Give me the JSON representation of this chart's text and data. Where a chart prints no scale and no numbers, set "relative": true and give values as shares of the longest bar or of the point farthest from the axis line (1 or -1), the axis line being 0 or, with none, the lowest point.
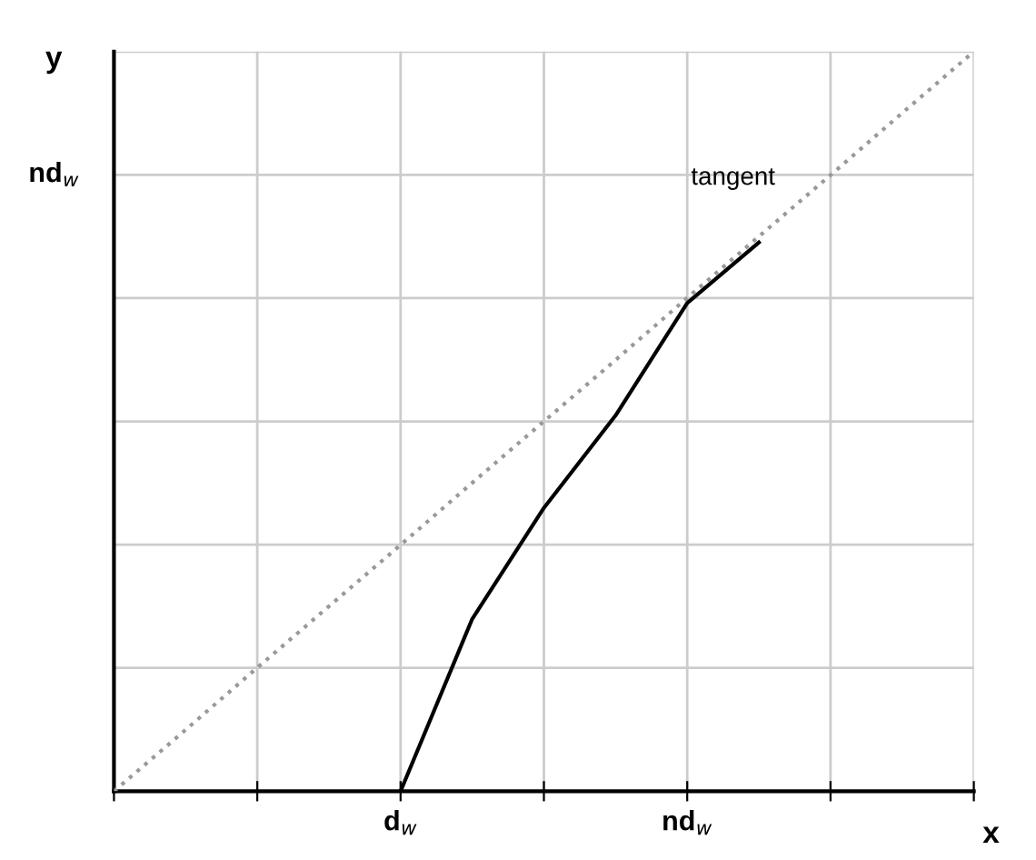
{
  "chart_data": {
    "type": "line",
    "xlabel": "x",
    "ylabel": "y",
    "relative": true,
    "categories": [
      null,
      null,
      null,
      null,
      "d$_{w}$",
      null,
      null,
      null,
      "nd$_{w}$",
      null,
      null,
      null,
      null
    ],
    "grid": true,
    "series": [
      {
        "color": "#999999",
        "line_style": "dotted",
        "values": [
          0,
          0.083,
          0.167,
          0.25,
          0.333,
          0.417,
          0.5,
          0.583,
          0.667,
          0.75,
          0.833,
          0.917,
          1
        ]
      },
      {
        "color": "#000000",
        "line_style": "solid",
        "values": [
          null,
          null,
          null,
          null,
          0,
          0.233,
          0.383,
          0.508,
          0.66,
          0.742,
          null,
          null,
          null
        ]
      }
    ],
    "annotations": [
      "tangent",
      "nd$_{w}$"
    ]
  }
}
